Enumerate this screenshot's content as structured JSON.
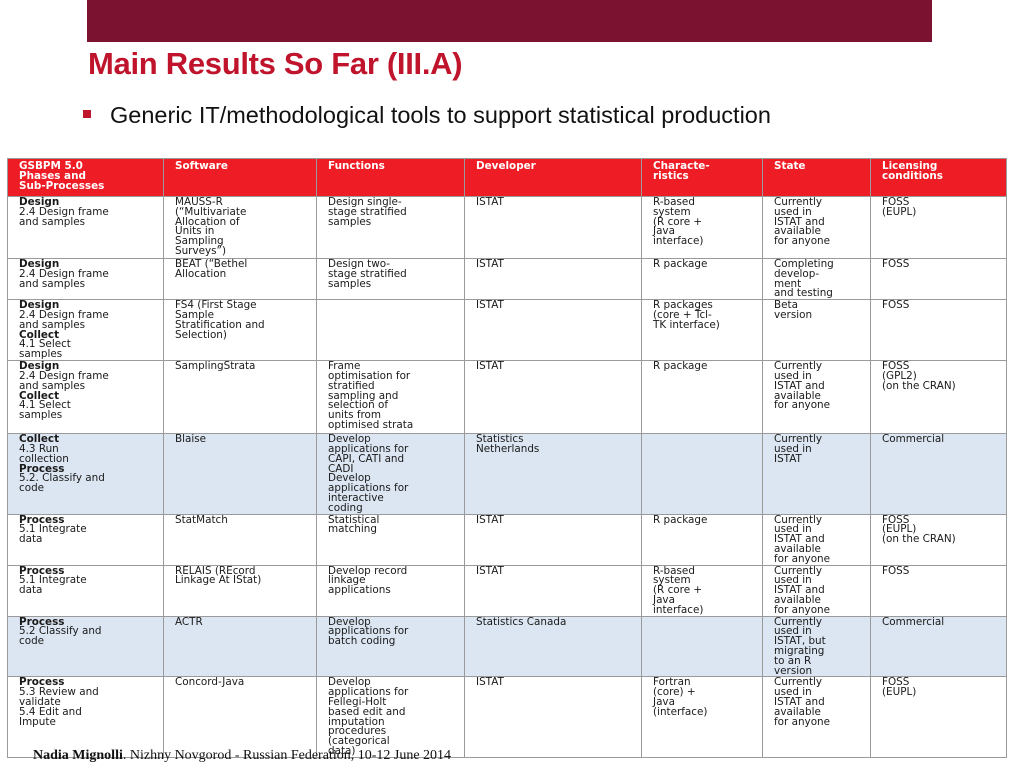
{
  "slide": {
    "title": "Main Results So Far (III.A)",
    "bullet": "Generic IT/methodological tools to support statistical production"
  },
  "table": {
    "headers": [
      "GSBPM 5.0\nPhases and\nSub-Processes",
      "Software",
      "Functions",
      "Developer",
      "Characte-\nristics",
      "State",
      "Licensing\nconditions"
    ],
    "rows": [
      {
        "phases": [
          {
            "title": "Design",
            "detail": "2.4 Design frame\nand samples"
          }
        ],
        "software": "MAUSS-R\n(“Multivariate\nAllocation of\nUnits in\nSampling\nSurveys”)",
        "functions": "Design single-\nstage stratified\nsamples",
        "developer": "ISTAT",
        "characteristics": "R-based\nsystem\n(R core +\nJava\ninterface)",
        "state": "Currently\nused in\nISTAT and\navailable\nfor anyone",
        "licensing": "FOSS\n(EUPL)"
      },
      {
        "phases": [
          {
            "title": "Design",
            "detail": "2.4 Design frame\nand samples"
          }
        ],
        "software": "BEAT (“Bethel\nAllocation",
        "functions": "Design two-\nstage stratified\nsamples",
        "developer": "ISTAT",
        "characteristics": "R package",
        "state": "Completing\ndevelop-\nment\nand testing",
        "licensing": "FOSS"
      },
      {
        "phases": [
          {
            "title": "Design",
            "detail": "2.4 Design frame\nand samples"
          },
          {
            "title": "Collect",
            "detail": "4.1 Select\nsamples"
          }
        ],
        "software": "FS4 (First Stage\nSample\nStratification and\nSelection)",
        "functions": "",
        "developer": "ISTAT",
        "characteristics": "R packages\n(core + Tcl-\nTK interface)",
        "state": "Beta\nversion",
        "licensing": "FOSS"
      },
      {
        "phases": [
          {
            "title": "Design",
            "detail": "2.4 Design frame\nand samples"
          },
          {
            "title": "Collect",
            "detail": "4.1 Select\nsamples"
          }
        ],
        "software": "SamplingStrata",
        "functions": "Frame\noptimisation for\nstratified\nsampling and\nselection of\nunits from\noptimised strata",
        "developer": "ISTAT",
        "characteristics": "R package",
        "state": "Currently\nused in\nISTAT and\navailable\nfor anyone",
        "licensing": "FOSS\n(GPL2)\n(on the CRAN)"
      },
      {
        "phases": [
          {
            "title": "Collect",
            "detail": "4.3 Run\ncollection"
          },
          {
            "title": "Process",
            "detail": "5.2. Classify and\ncode"
          }
        ],
        "software": "Blaise",
        "functions": "Develop\napplications for\nCAPI, CATI and\nCADI\nDevelop\napplications for\ninteractive\ncoding",
        "developer": "Statistics\nNetherlands",
        "characteristics": "",
        "state": "Currently\nused in\nISTAT",
        "licensing": "Commercial"
      },
      {
        "phases": [
          {
            "title": "Process",
            "detail": "5.1 Integrate\ndata"
          }
        ],
        "software": "StatMatch",
        "functions": "Statistical\nmatching",
        "developer": "ISTAT",
        "characteristics": "R package",
        "state": "Currently\nused in\nISTAT and\navailable\nfor anyone",
        "licensing": "FOSS\n(EUPL)\n(on the CRAN)"
      },
      {
        "phases": [
          {
            "title": "Process",
            "detail": "5.1 Integrate\ndata"
          }
        ],
        "software": "RELAIS (REcord\nLinkage At IStat)",
        "functions": "Develop record\nlinkage\napplications",
        "developer": "ISTAT",
        "characteristics": "R-based\nsystem\n(R core +\nJava\ninterface)",
        "state": "Currently\nused in\nISTAT and\navailable\nfor anyone",
        "licensing": "FOSS"
      },
      {
        "phases": [
          {
            "title": "Process",
            "detail": "5.2 Classify and\ncode"
          }
        ],
        "software": "ACTR",
        "functions": "Develop\napplications for\nbatch coding",
        "developer": "Statistics Canada",
        "characteristics": "",
        "state": "Currently\nused in\nISTAT, but\nmigrating\nto an R\nversion",
        "licensing": "Commercial"
      },
      {
        "phases": [
          {
            "title": "Process",
            "detail": "5.3 Review and\nvalidate\n5.4 Edit and\nImpute"
          }
        ],
        "software": "Concord-Java",
        "functions": "Develop\napplications for\nFellegi-Holt\nbased edit and\nimputation\nprocedures\n(categorical\ndata)",
        "developer": "ISTAT",
        "characteristics": "Fortran\n(core) +\nJava\n(interface)",
        "state": "Currently\nused in\nISTAT and\navailable\nfor anyone",
        "licensing": "FOSS\n(EUPL)"
      }
    ]
  },
  "footer": {
    "author": "Nadia Mignolli",
    "event": ". Nizhny Novgorod - Russian Federation, 10-12 June 2014"
  },
  "colors": {
    "brand_bar": "#7b1230",
    "title": "#c0142c",
    "header_fill": "#ee1c25",
    "blue_row_fill": "#dce6f2"
  }
}
